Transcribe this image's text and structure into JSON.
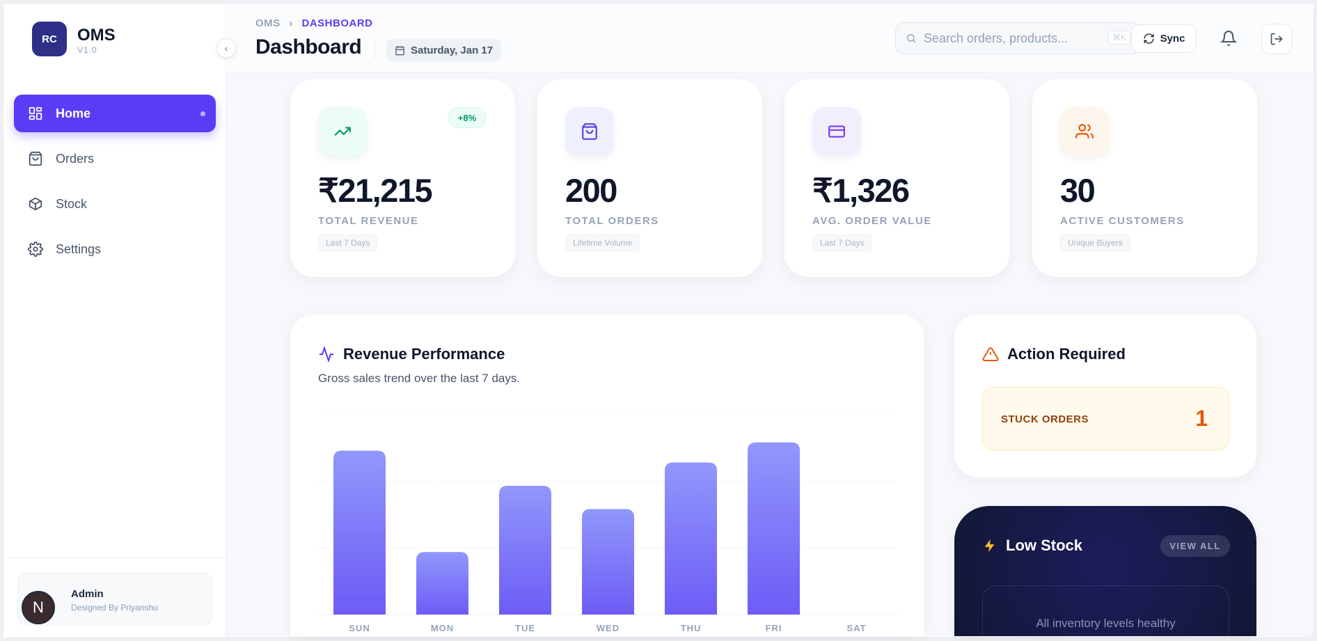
{
  "sidebar": {
    "logo": "RC",
    "brand": "OMS",
    "version": "V1.0",
    "items": [
      {
        "label": "Home",
        "icon": "grid-icon"
      },
      {
        "label": "Orders",
        "icon": "bag-icon"
      },
      {
        "label": "Stock",
        "icon": "box-icon"
      },
      {
        "label": "Settings",
        "icon": "gear-icon"
      }
    ],
    "profile": {
      "avatar": "N",
      "name": "Admin",
      "subtitle": "Designed By Priyanshu"
    }
  },
  "header": {
    "breadcrumb": [
      "OMS",
      "DASHBOARD"
    ],
    "separator": "›",
    "title": "Dashboard",
    "date": "Saturday, Jan 17",
    "search_placeholder": "Search orders, products...",
    "shortcut": "⌘K",
    "sync_label": "Sync"
  },
  "stats": [
    {
      "value": "₹21,215",
      "label": "TOTAL REVENUE",
      "tag": "Last 7 Days",
      "badge": "+8%",
      "icon": "trending-up-icon",
      "color": "#059669",
      "bg": "#ecfdf5"
    },
    {
      "value": "200",
      "label": "TOTAL ORDERS",
      "tag": "Lifetime Volume",
      "icon": "shopping-bag-icon",
      "color": "#4f46e5",
      "bg": "#eef0fd"
    },
    {
      "value": "₹1,326",
      "label": "AVG. ORDER VALUE",
      "tag": "Last 7 Days",
      "icon": "credit-card-icon",
      "color": "#7c3aed",
      "bg": "#f1eefd"
    },
    {
      "value": "30",
      "label": "ACTIVE CUSTOMERS",
      "tag": "Unique Buyers",
      "icon": "users-icon",
      "color": "#ea580c",
      "bg": "#fdf6ec"
    }
  ],
  "revenue": {
    "title": "Revenue Performance",
    "subtitle": "Gross sales trend over the last 7 days."
  },
  "chart_data": {
    "type": "bar",
    "title": "Revenue Performance",
    "categories": [
      "SUN",
      "MON",
      "TUE",
      "WED",
      "THU",
      "FRI",
      "SAT"
    ],
    "values": [
      4430,
      1690,
      3480,
      2850,
      4110,
      4655,
      0
    ],
    "ylim": [
      0,
      5400
    ],
    "grid": true,
    "xlabel": "",
    "ylabel": "",
    "bar_color": "#7c78f8"
  },
  "action": {
    "title": "Action Required",
    "stuck_label": "STUCK ORDERS",
    "stuck_count": "1"
  },
  "low_stock": {
    "title": "Low Stock",
    "view_all": "VIEW ALL",
    "empty_text": "All inventory levels healthy"
  }
}
